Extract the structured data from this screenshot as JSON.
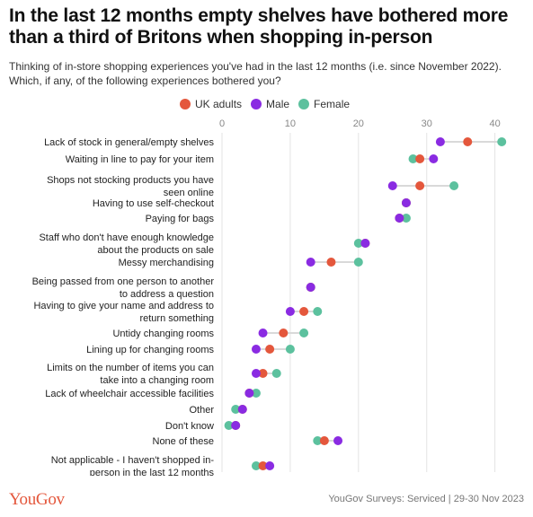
{
  "title": "In the last 12 months empty shelves have bothered more than a third of Britons when shopping in-person",
  "subtitle": "Thinking of in-store shopping experiences you've had in the last 12 months (i.e. since November 2022). Which, if any, of the following experiences bothered you?",
  "footer": {
    "logo": "YouGov",
    "source": "YouGov Surveys: Serviced | 29-30 Nov 2023"
  },
  "colors": {
    "uk_adults": "#e4573c",
    "male": "#8a2be2",
    "female": "#5cc19e",
    "grid": "#e3e3e3",
    "tick": "#888888"
  },
  "chart_data": {
    "type": "scatter",
    "orientation": "horizontal-dot-plot",
    "xlim": [
      0,
      44
    ],
    "xticks": [
      0,
      10,
      20,
      30,
      40
    ],
    "grid": true,
    "legend_position": "top",
    "categories": [
      "Lack of stock in general/empty shelves",
      "Waiting in line to pay for your item",
      "Shops not stocking products you have seen online",
      "Having to use self-checkout",
      "Paying for bags",
      "Staff who don't have enough knowledge about the products on sale",
      "Messy merchandising",
      "Being passed from one person to another to address a question",
      "Having to give your name and address to return something",
      "Untidy changing rooms",
      "Lining up for changing rooms",
      "Limits on the number of items you can take into a changing room",
      "Lack of wheelchair accessible facilities",
      "Other",
      "Don't know",
      "None of these",
      "Not applicable - I haven't shopped in-person in the last 12 months"
    ],
    "category_lines": [
      [
        "Lack of stock in general/empty shelves"
      ],
      [
        "Waiting in line to pay for your item"
      ],
      [
        "Shops not stocking products you have",
        "seen online"
      ],
      [
        "Having to use self-checkout"
      ],
      [
        "Paying for bags"
      ],
      [
        "Staff who don't have enough knowledge",
        "about the products on sale"
      ],
      [
        "Messy merchandising"
      ],
      [
        "Being passed from one person to another",
        "to address a question"
      ],
      [
        "Having to give your name and address to",
        "return something"
      ],
      [
        "Untidy changing rooms"
      ],
      [
        "Lining up for changing rooms"
      ],
      [
        "Limits on the number of items you can",
        "take into a changing room"
      ],
      [
        "Lack of wheelchair accessible facilities"
      ],
      [
        "Other"
      ],
      [
        "Don't know"
      ],
      [
        "None of these"
      ],
      [
        "Not applicable - I haven't shopped in-",
        "person in the last 12 months"
      ]
    ],
    "series": [
      {
        "name": "UK adults",
        "color": "#e4573c",
        "values": [
          36,
          29,
          29,
          27,
          26,
          21,
          16,
          13,
          12,
          9,
          7,
          6,
          4,
          3,
          2,
          15,
          6
        ]
      },
      {
        "name": "Male",
        "color": "#8a2be2",
        "values": [
          32,
          31,
          25,
          27,
          26,
          21,
          13,
          13,
          10,
          6,
          5,
          5,
          4,
          3,
          2,
          17,
          7
        ]
      },
      {
        "name": "Female",
        "color": "#5cc19e",
        "values": [
          41,
          28,
          34,
          27,
          27,
          20,
          20,
          13,
          14,
          12,
          10,
          8,
          5,
          2,
          1,
          14,
          5
        ]
      }
    ]
  }
}
